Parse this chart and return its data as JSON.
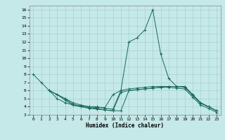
{
  "xlabel": "Humidex (Indice chaleur)",
  "bg_color": "#c5e8e8",
  "line_color": "#1a6b5a",
  "grid_color": "#a8d0d0",
  "xlim": [
    -0.5,
    23.5
  ],
  "ylim": [
    3,
    16.5
  ],
  "yticks": [
    3,
    4,
    5,
    6,
    7,
    8,
    9,
    10,
    11,
    12,
    13,
    14,
    15,
    16
  ],
  "xticks": [
    0,
    1,
    2,
    3,
    4,
    5,
    6,
    7,
    8,
    9,
    10,
    11,
    12,
    13,
    14,
    15,
    16,
    17,
    18,
    19,
    20,
    21,
    22,
    23
  ],
  "lines": [
    {
      "x": [
        0,
        1,
        2,
        3,
        4,
        5,
        6,
        7,
        8,
        9,
        10,
        11,
        12,
        13,
        14,
        15,
        16,
        17,
        18,
        19,
        20,
        21,
        22,
        23
      ],
      "y": [
        8.0,
        7.0,
        6.0,
        5.5,
        5.0,
        4.3,
        4.1,
        4.0,
        3.9,
        3.9,
        5.5,
        6.0,
        12.0,
        12.5,
        13.5,
        16.0,
        10.5,
        7.5,
        6.5,
        6.5,
        5.5,
        4.5,
        4.0,
        3.5
      ]
    },
    {
      "x": [
        2,
        3,
        4,
        5,
        6,
        7,
        8,
        9,
        10,
        11,
        12,
        13,
        14,
        15,
        16,
        17,
        18,
        19,
        20,
        21,
        22,
        23
      ],
      "y": [
        6.0,
        5.5,
        5.0,
        4.5,
        4.2,
        4.0,
        4.0,
        3.8,
        3.7,
        6.0,
        6.2,
        6.3,
        6.4,
        6.5,
        6.5,
        6.5,
        6.5,
        6.5,
        5.5,
        4.5,
        4.0,
        3.5
      ]
    },
    {
      "x": [
        2,
        3,
        4,
        5,
        6,
        7,
        8,
        9,
        10,
        11,
        12,
        13,
        14,
        15,
        16,
        17,
        18,
        19,
        20,
        21,
        22,
        23
      ],
      "y": [
        6.0,
        5.0,
        4.5,
        4.2,
        4.0,
        3.8,
        3.7,
        3.6,
        3.5,
        5.8,
        6.0,
        6.1,
        6.2,
        6.3,
        6.4,
        6.4,
        6.3,
        6.2,
        5.2,
        4.2,
        3.8,
        3.3
      ]
    },
    {
      "x": [
        2,
        3,
        4,
        5,
        6,
        7,
        8,
        9,
        10,
        11,
        12,
        13,
        14,
        15,
        16,
        17,
        18,
        19,
        20,
        21,
        22,
        23
      ],
      "y": [
        6.0,
        5.5,
        4.8,
        4.2,
        4.0,
        3.9,
        3.8,
        3.6,
        3.5,
        3.5,
        6.0,
        6.1,
        6.2,
        6.3,
        6.4,
        6.5,
        6.5,
        6.4,
        5.4,
        4.4,
        4.0,
        3.5
      ]
    }
  ]
}
